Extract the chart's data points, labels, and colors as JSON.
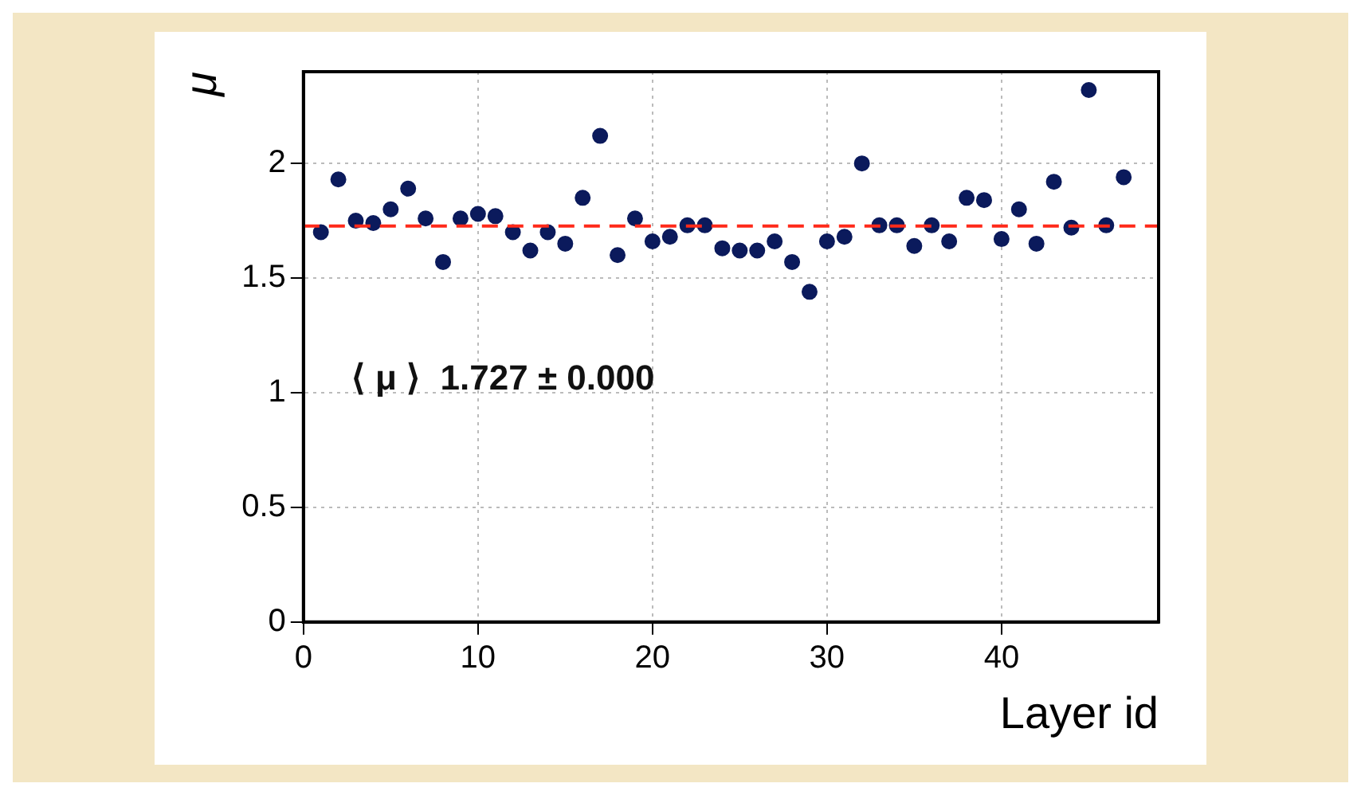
{
  "chart_data": {
    "type": "scatter",
    "xlabel": "Layer id",
    "ylabel": "μ",
    "x": [
      1,
      2,
      3,
      4,
      5,
      6,
      7,
      8,
      9,
      10,
      11,
      12,
      13,
      14,
      15,
      16,
      17,
      18,
      19,
      20,
      21,
      22,
      23,
      24,
      25,
      26,
      27,
      28,
      29,
      30,
      31,
      32,
      33,
      34,
      35,
      36,
      37,
      38,
      39,
      40,
      41,
      42,
      43,
      44,
      45,
      46,
      47
    ],
    "series": [
      {
        "color": "#0b1a5c",
        "values": [
          1.7,
          1.93,
          1.75,
          1.74,
          1.8,
          1.89,
          1.76,
          1.57,
          1.76,
          1.78,
          1.77,
          1.7,
          1.62,
          1.7,
          1.65,
          1.85,
          2.12,
          1.6,
          1.76,
          1.66,
          1.68,
          1.73,
          1.73,
          1.63,
          1.62,
          1.62,
          1.66,
          1.57,
          1.44,
          1.66,
          1.68,
          2.0,
          1.73,
          1.73,
          1.64,
          1.73,
          1.66,
          1.85,
          1.84,
          1.67,
          1.8,
          1.65,
          1.92,
          1.72,
          2.32,
          1.73,
          1.94
        ]
      }
    ],
    "xlim": [
      0,
      49
    ],
    "ylim": [
      0,
      2.4
    ],
    "xticks": [
      0,
      10,
      20,
      30,
      40
    ],
    "yticks": [
      0,
      0.5,
      1,
      1.5,
      2
    ],
    "grid": true,
    "marker": "circle",
    "legend": false,
    "ref_lines": [
      {
        "axis": "y",
        "value": 1.727,
        "color": "#ff2a1a",
        "line_style": "dashed"
      }
    ],
    "annotations": [
      "⟨ μ ⟩  1.727 ± 0.000"
    ]
  }
}
